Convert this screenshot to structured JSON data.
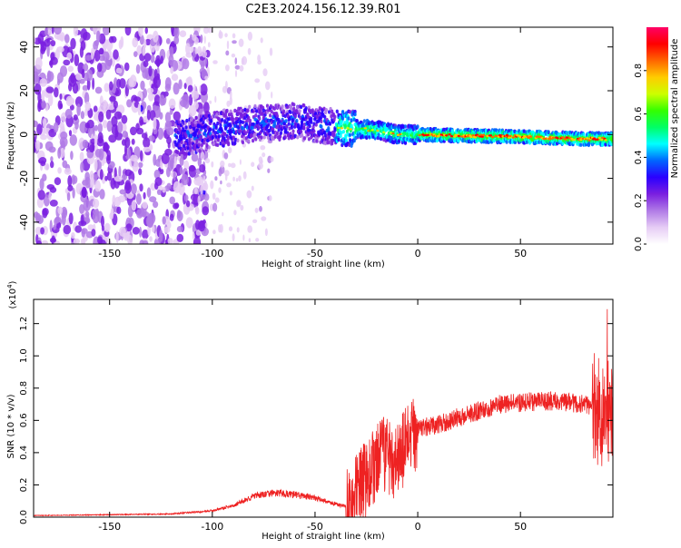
{
  "title": "C2E3.2024.156.12.39.R01",
  "chart_data": [
    {
      "type": "heatmap",
      "xlabel": "Height of straight line (km)",
      "ylabel": "Frequency (Hz)",
      "xlim": [
        -187,
        95
      ],
      "ylim": [
        -50,
        49
      ],
      "x_ticks": [
        -150,
        -100,
        -50,
        0,
        50
      ],
      "y_ticks": [
        -40,
        -20,
        0,
        20,
        40
      ],
      "colorbar": {
        "label": "Normalized spectral amplitude",
        "range": [
          0,
          1
        ],
        "ticks": [
          "0.0",
          "0.2",
          "0.4",
          "0.6",
          "0.8"
        ],
        "colors": [
          "#ffffff",
          "#e6ccf5",
          "#b07ae6",
          "#7a1fe0",
          "#2a00ff",
          "#0066ff",
          "#00ffff",
          "#00ff66",
          "#33ff00",
          "#ccff00",
          "#ffcc00",
          "#ff6600",
          "#ff0000",
          "#ff0066"
        ]
      },
      "ridge": {
        "description_values": "frequency center (Hz) vs height (km)",
        "x": [
          -115,
          -100,
          -80,
          -60,
          -45,
          -35,
          -20,
          -10,
          0,
          20,
          50,
          80,
          95
        ],
        "y": [
          -2,
          2,
          5,
          6,
          4,
          3,
          2,
          0,
          0,
          -0.5,
          -1,
          -2,
          -2
        ]
      }
    },
    {
      "type": "line",
      "xlabel": "Height of straight line (km)",
      "ylabel": "SNR (10 * v/v)",
      "y_multiplier": "(x10",
      "y_multiplier_exp": "4",
      "y_multiplier_close": ")",
      "xlim": [
        -187,
        95
      ],
      "ylim": [
        0,
        1.35
      ],
      "x_ticks": [
        -150,
        -100,
        -50,
        0,
        50
      ],
      "y_ticks": [
        "0.0",
        "0.2",
        "0.4",
        "0.6",
        "0.8",
        "1.0",
        "1.2"
      ],
      "y_tick_values": [
        0,
        0.2,
        0.4,
        0.6,
        0.8,
        1.0,
        1.2
      ],
      "line_color": "#ee2222",
      "envelope": {
        "x": [
          -187,
          -150,
          -120,
          -100,
          -90,
          -80,
          -70,
          -60,
          -50,
          -40,
          -33,
          -25,
          -15,
          -10,
          -5,
          0,
          10,
          20,
          30,
          40,
          50,
          60,
          70,
          80,
          85,
          90,
          95
        ],
        "y": [
          0.01,
          0.015,
          0.02,
          0.04,
          0.07,
          0.13,
          0.15,
          0.14,
          0.12,
          0.08,
          0.06,
          0.25,
          0.4,
          0.35,
          0.45,
          0.55,
          0.57,
          0.62,
          0.66,
          0.7,
          0.71,
          0.72,
          0.72,
          0.7,
          0.68,
          0.65,
          0.7
        ]
      }
    }
  ]
}
